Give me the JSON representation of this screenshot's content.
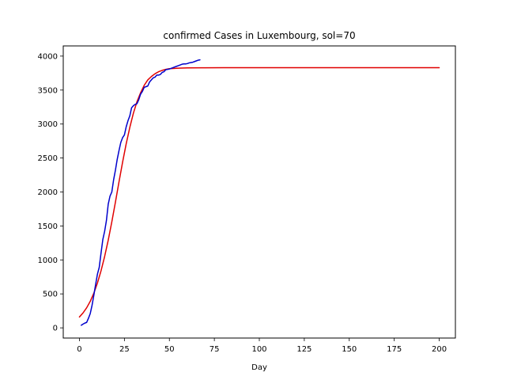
{
  "chart_data": {
    "type": "line",
    "title": "confirmed Cases in Luxembourg, sol=70",
    "xlabel": "Day",
    "ylabel": "",
    "xlim": [
      -9,
      209
    ],
    "ylim": [
      -150,
      4150
    ],
    "xticks": [
      0,
      25,
      50,
      75,
      100,
      125,
      150,
      175,
      200
    ],
    "yticks": [
      0,
      500,
      1000,
      1500,
      2000,
      2500,
      3000,
      3500,
      4000
    ],
    "grid": false,
    "series": [
      {
        "color": "#e00000",
        "x": [
          0,
          2,
          4,
          6,
          8,
          10,
          12,
          14,
          16,
          18,
          20,
          22,
          24,
          26,
          28,
          30,
          32,
          34,
          36,
          38,
          40,
          42,
          44,
          46,
          48,
          50,
          55,
          60,
          70,
          80,
          100,
          125,
          150,
          175,
          200
        ],
        "y": [
          160,
          220,
          295,
          390,
          510,
          660,
          840,
          1050,
          1290,
          1560,
          1850,
          2150,
          2440,
          2710,
          2950,
          3160,
          3330,
          3460,
          3570,
          3650,
          3700,
          3740,
          3770,
          3790,
          3805,
          3815,
          3822,
          3826,
          3828,
          3829,
          3830,
          3830,
          3830,
          3830,
          3830
        ]
      },
      {
        "color": "#0000cc",
        "x": [
          1,
          2,
          3,
          4,
          5,
          6,
          7,
          8,
          9,
          10,
          11,
          12,
          13,
          14,
          15,
          16,
          17,
          18,
          19,
          20,
          21,
          22,
          23,
          24,
          25,
          26,
          27,
          28,
          29,
          30,
          31,
          32,
          33,
          34,
          35,
          36,
          37,
          38,
          39,
          40,
          41,
          42,
          43,
          44,
          45,
          46,
          47,
          48,
          49,
          50,
          51,
          52,
          53,
          54,
          55,
          56,
          57,
          58,
          59,
          60,
          61,
          62,
          63,
          64,
          65,
          66,
          67
        ],
        "y": [
          38,
          55,
          70,
          80,
          140,
          210,
          330,
          480,
          640,
          790,
          890,
          1100,
          1300,
          1420,
          1580,
          1820,
          1940,
          2000,
          2180,
          2320,
          2480,
          2610,
          2730,
          2800,
          2840,
          2960,
          3050,
          3120,
          3240,
          3270,
          3290,
          3300,
          3360,
          3440,
          3480,
          3540,
          3550,
          3560,
          3620,
          3650,
          3680,
          3690,
          3720,
          3720,
          3730,
          3760,
          3770,
          3800,
          3805,
          3810,
          3820,
          3830,
          3840,
          3850,
          3860,
          3870,
          3880,
          3885,
          3885,
          3890,
          3900,
          3905,
          3910,
          3920,
          3930,
          3940,
          3945
        ]
      }
    ]
  }
}
